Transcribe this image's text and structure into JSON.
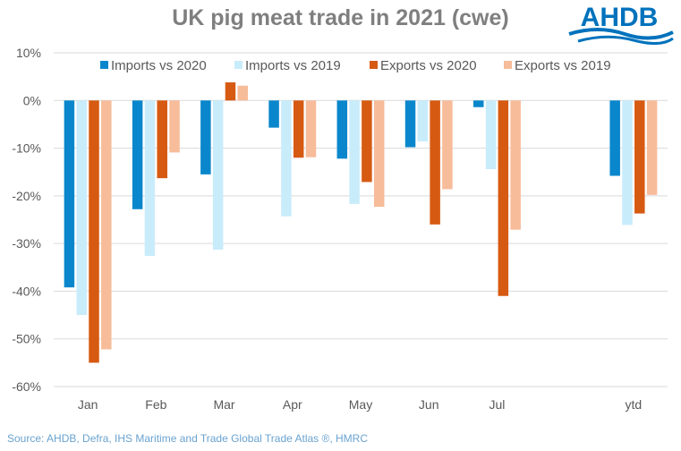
{
  "logo_text": "AHDB",
  "source": "Source: AHDB, Defra, IHS Maritime and Trade Global Trade Atlas ®, HMRC",
  "chart_data": {
    "type": "bar",
    "title": "UK pig meat trade in 2021 (cwe)",
    "categories": [
      "Jan",
      "Feb",
      "Mar",
      "Apr",
      "May",
      "Jun",
      "Jul",
      "",
      "ytd"
    ],
    "series": [
      {
        "name": "Imports vs 2020",
        "color": "#0a87cc",
        "values": [
          -39.2,
          -22.8,
          -15.5,
          -5.7,
          -12.2,
          -9.8,
          -1.4,
          null,
          -15.8
        ]
      },
      {
        "name": "Imports vs 2019",
        "color": "#c9ecfb",
        "values": [
          -45.0,
          -32.6,
          -31.3,
          -24.3,
          -21.7,
          -8.6,
          -14.4,
          null,
          -26.1
        ]
      },
      {
        "name": "Exports vs 2020",
        "color": "#d65a12",
        "values": [
          -55.0,
          -16.3,
          3.8,
          -12.0,
          -17.1,
          -26.0,
          -41.0,
          null,
          -23.7
        ]
      },
      {
        "name": "Exports vs 2019",
        "color": "#f7bc9a",
        "values": [
          -52.2,
          -10.9,
          3.1,
          -11.9,
          -22.3,
          -18.6,
          -27.1,
          null,
          -19.8
        ]
      }
    ],
    "yticks": [
      "10%",
      "0%",
      "-10%",
      "-20%",
      "-30%",
      "-40%",
      "-50%",
      "-60%"
    ],
    "ylim": [
      -60,
      10
    ],
    "grid": true,
    "legend": "top"
  }
}
